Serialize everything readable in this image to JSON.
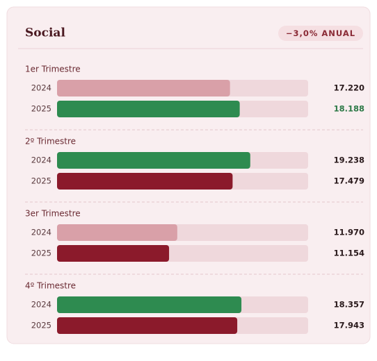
{
  "chart_data": {
    "type": "bar",
    "title": "Social",
    "annotation": "−3,0% ANUAL",
    "xlim": [
      0,
      25000
    ],
    "groups": [
      {
        "name": "1er Trimestre",
        "categories": [
          "2024",
          "2025"
        ],
        "values": [
          17220,
          18188
        ],
        "value_labels": [
          "17.220",
          "18.188"
        ],
        "colors": [
          "#d9a0a8",
          "#2e8b50"
        ],
        "label_colors": [
          "#2a1a1c",
          "#2e7a48"
        ]
      },
      {
        "name": "2º Trimestre",
        "categories": [
          "2024",
          "2025"
        ],
        "values": [
          19238,
          17479
        ],
        "value_labels": [
          "19.238",
          "17.479"
        ],
        "colors": [
          "#2e8b50",
          "#8b1a2b"
        ],
        "label_colors": [
          "#2a1a1c",
          "#2a1a1c"
        ]
      },
      {
        "name": "3er Trimestre",
        "categories": [
          "2024",
          "2025"
        ],
        "values": [
          11970,
          11154
        ],
        "value_labels": [
          "11.970",
          "11.154"
        ],
        "colors": [
          "#d9a0a8",
          "#8b1a2b"
        ],
        "label_colors": [
          "#2a1a1c",
          "#2a1a1c"
        ]
      },
      {
        "name": "4º Trimestre",
        "categories": [
          "2024",
          "2025"
        ],
        "values": [
          18357,
          17943
        ],
        "value_labels": [
          "18.357",
          "17.943"
        ],
        "colors": [
          "#2e8b50",
          "#8b1a2b"
        ],
        "label_colors": [
          "#2a1a1c",
          "#2a1a1c"
        ]
      }
    ]
  }
}
